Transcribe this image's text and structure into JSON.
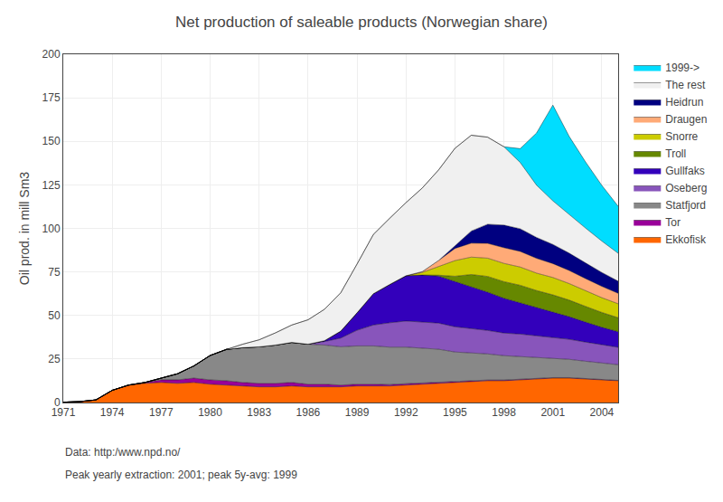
{
  "chart_data": {
    "type": "area",
    "stacked": true,
    "title": "Net production of saleable products (Norwegian share)",
    "ylabel": "Oil prod. in mill Sm3",
    "annotations": [
      "Data: http:/www.npd.no/",
      "Peak yearly extraction: 2001; peak 5y-avg: 1999"
    ],
    "x": [
      1971,
      1972,
      1973,
      1974,
      1975,
      1976,
      1977,
      1978,
      1979,
      1980,
      1981,
      1982,
      1983,
      1984,
      1985,
      1986,
      1987,
      1988,
      1989,
      1990,
      1991,
      1992,
      1993,
      1994,
      1995,
      1996,
      1997,
      1998,
      1999,
      2000,
      2001,
      2002,
      2003,
      2004,
      2005
    ],
    "xlim": [
      1971,
      2005
    ],
    "xticks": [
      1971,
      1974,
      1977,
      1980,
      1983,
      1986,
      1989,
      1992,
      1995,
      1998,
      2001,
      2004
    ],
    "ylim": [
      0,
      200
    ],
    "yticks": [
      0,
      25,
      50,
      75,
      100,
      125,
      150,
      175,
      200
    ],
    "grid": true,
    "legend": "right",
    "series": [
      {
        "name": "Ekkofisk",
        "color": "#ff6600",
        "values": [
          0.2,
          0.5,
          1.5,
          7.0,
          10.0,
          11.0,
          11.5,
          11.0,
          11.5,
          10.5,
          10.0,
          9.5,
          9.0,
          9.0,
          9.5,
          9.0,
          9.0,
          9.0,
          9.5,
          9.5,
          9.5,
          10.0,
          10.5,
          11.0,
          11.5,
          12.0,
          12.5,
          12.5,
          13.0,
          13.5,
          14.0,
          14.0,
          13.5,
          13.0,
          12.5
        ]
      },
      {
        "name": "Tor",
        "color": "#990099",
        "values": [
          0,
          0,
          0,
          0,
          0,
          0.5,
          1.5,
          2.0,
          2.5,
          2.5,
          2.5,
          2.0,
          2.0,
          2.0,
          2.0,
          1.5,
          1.5,
          1.0,
          1.0,
          1.0,
          0.8,
          0.8,
          0.7,
          0.6,
          0.5,
          0.5,
          0.4,
          0.4,
          0.3,
          0.3,
          0.3,
          0.3,
          0.2,
          0.2,
          0.2
        ]
      },
      {
        "name": "Statfjord",
        "color": "#888888",
        "values": [
          0,
          0,
          0,
          0,
          0,
          0,
          1.0,
          3.5,
          7.0,
          14.0,
          18.0,
          20.0,
          21.0,
          22.0,
          23.0,
          23.0,
          22.5,
          22.0,
          22.0,
          22.0,
          21.5,
          21.0,
          20.0,
          19.0,
          17.0,
          16.0,
          15.0,
          14.0,
          13.0,
          12.0,
          11.0,
          10.5,
          10.0,
          9.5,
          9.0
        ]
      },
      {
        "name": "Oseberg",
        "color": "#8855bb",
        "values": [
          0,
          0,
          0,
          0,
          0,
          0,
          0,
          0,
          0,
          0,
          0,
          0,
          0,
          0,
          0,
          0,
          2.0,
          5.0,
          9.0,
          12.0,
          14.0,
          15.0,
          15.0,
          15.0,
          14.5,
          14.0,
          13.5,
          13.0,
          13.0,
          12.5,
          12.0,
          11.5,
          11.0,
          10.5,
          10.0
        ]
      },
      {
        "name": "Gullfaks",
        "color": "#3300bb",
        "values": [
          0,
          0,
          0,
          0,
          0,
          0,
          0,
          0,
          0,
          0,
          0,
          0,
          0,
          0,
          0,
          0,
          0.5,
          4.0,
          10.0,
          18.0,
          22.0,
          26.0,
          27.0,
          27.0,
          26.0,
          24.0,
          22.0,
          20.0,
          18.0,
          16.0,
          14.5,
          13.0,
          11.5,
          10.0,
          9.0
        ]
      },
      {
        "name": "Troll",
        "color": "#668800",
        "values": [
          0,
          0,
          0,
          0,
          0,
          0,
          0,
          0,
          0,
          0,
          0,
          0,
          0,
          0,
          0,
          0,
          0,
          0,
          0,
          0,
          0,
          0,
          0,
          0.5,
          3.0,
          7.0,
          9.0,
          9.5,
          10.0,
          10.0,
          10.0,
          9.5,
          9.0,
          8.5,
          8.0
        ]
      },
      {
        "name": "Snorre",
        "color": "#cccc00",
        "values": [
          0,
          0,
          0,
          0,
          0,
          0,
          0,
          0,
          0,
          0,
          0,
          0,
          0,
          0,
          0,
          0,
          0,
          0,
          0,
          0,
          0,
          0,
          1.5,
          5.0,
          9.0,
          10.0,
          10.5,
          10.5,
          10.5,
          10.0,
          10.0,
          9.5,
          9.0,
          8.5,
          8.0
        ]
      },
      {
        "name": "Draugen",
        "color": "#ffaa77",
        "values": [
          0,
          0,
          0,
          0,
          0,
          0,
          0,
          0,
          0,
          0,
          0,
          0,
          0,
          0,
          0,
          0,
          0,
          0,
          0,
          0,
          0,
          0,
          0.5,
          3.5,
          7.0,
          8.0,
          8.5,
          9.0,
          9.0,
          8.5,
          8.0,
          7.5,
          7.0,
          6.5,
          6.0
        ]
      },
      {
        "name": "Heidrun",
        "color": "#000080",
        "values": [
          0,
          0,
          0,
          0,
          0,
          0,
          0,
          0,
          0,
          0,
          0,
          0,
          0,
          0,
          0,
          0,
          0,
          0,
          0,
          0,
          0,
          0,
          0,
          0,
          1.5,
          7.0,
          11.0,
          13.0,
          13.0,
          12.0,
          11.0,
          10.0,
          9.0,
          8.0,
          7.0
        ]
      },
      {
        "name": "The rest",
        "color": "#f0f0f0",
        "values": [
          0,
          0,
          0,
          0,
          0,
          0,
          0,
          0,
          0,
          0,
          0,
          2.0,
          4.0,
          7.0,
          10.0,
          14.0,
          18.0,
          22.0,
          28.0,
          34.0,
          38.0,
          42.0,
          48.0,
          52.0,
          56.0,
          55.0,
          50.0,
          45.0,
          38.0,
          30.0,
          25.0,
          22.0,
          20.0,
          18.0,
          16.0
        ]
      },
      {
        "name": "1999->",
        "color": "#00ddff",
        "values": [
          0,
          0,
          0,
          0,
          0,
          0,
          0,
          0,
          0,
          0,
          0,
          0,
          0,
          0,
          0,
          0,
          0,
          0,
          0,
          0,
          0,
          0,
          0,
          0,
          0,
          0,
          0,
          0,
          8.0,
          30.0,
          55.0,
          45.0,
          38.0,
          32.0,
          27.0
        ]
      }
    ]
  }
}
